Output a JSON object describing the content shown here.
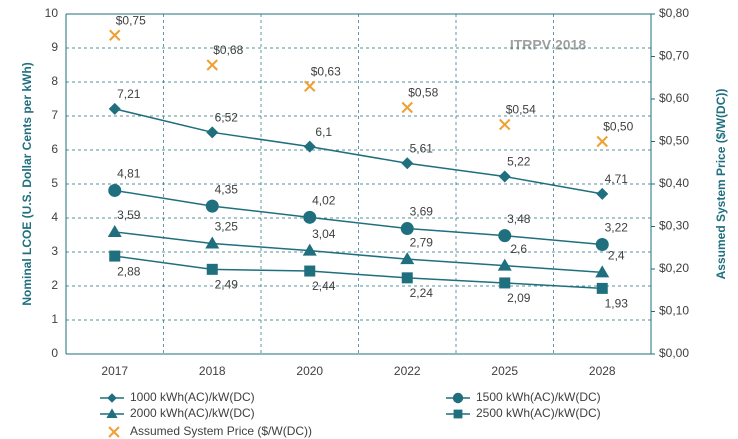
{
  "chart_data": {
    "type": "line",
    "annotation": "ITRPV 2018",
    "ylabel": "Nominal LCOE (U.S. Dollar Cents per kWh)",
    "y2label": "Assumed System Price ($/W(DC))",
    "categories": [
      "2017",
      "2018",
      "2020",
      "2022",
      "2025",
      "2028"
    ],
    "ylim": [
      0,
      10
    ],
    "yticks": [
      0,
      1,
      2,
      3,
      4,
      5,
      6,
      7,
      8,
      9,
      10
    ],
    "y2lim": [
      0,
      0.8
    ],
    "y2ticks": [
      {
        "value": 0,
        "label": "$0,00"
      },
      {
        "value": 0.1,
        "label": "$0,10"
      },
      {
        "value": 0.2,
        "label": "$0,20"
      },
      {
        "value": 0.3,
        "label": "$0,30"
      },
      {
        "value": 0.4,
        "label": "$0,40"
      },
      {
        "value": 0.5,
        "label": "$0,50"
      },
      {
        "value": 0.6,
        "label": "$0,60"
      },
      {
        "value": 0.7,
        "label": "$0,70"
      },
      {
        "value": 0.8,
        "label": "$0,80"
      }
    ],
    "grid": true,
    "legend": "bottom",
    "series": [
      {
        "name": "1000 kWh(AC)/kW(DC)",
        "color": "#1f6f7f",
        "marker": "diamond",
        "line": true,
        "values": [
          7.21,
          6.52,
          6.1,
          5.61,
          5.22,
          4.71
        ],
        "value_labels": [
          "7,21",
          "6,52",
          "6,1",
          "5,61",
          "5,22",
          "4,71"
        ]
      },
      {
        "name": "1500 kWh(AC)/kW(DC)",
        "color": "#1f6f7f",
        "marker": "circle",
        "line": true,
        "values": [
          4.81,
          4.35,
          4.02,
          3.69,
          3.48,
          3.22
        ],
        "value_labels": [
          "4,81",
          "4,35",
          "4,02",
          "3,69",
          "3,48",
          "3,22"
        ]
      },
      {
        "name": "2000 kWh(AC)/kW(DC)",
        "color": "#1f6f7f",
        "marker": "triangle",
        "line": true,
        "values": [
          3.59,
          3.25,
          3.04,
          2.79,
          2.6,
          2.4
        ],
        "value_labels": [
          "3,59",
          "3,25",
          "3,04",
          "2,79",
          "2,6",
          "2,4"
        ]
      },
      {
        "name": "2500 kWh(AC)/kW(DC)",
        "color": "#1f6f7f",
        "marker": "square",
        "line": true,
        "values": [
          2.88,
          2.49,
          2.44,
          2.24,
          2.09,
          1.93
        ],
        "value_labels": [
          "2,88",
          "2,49",
          "2,44",
          "2,24",
          "2,09",
          "1,93"
        ]
      },
      {
        "name": "Assumed System Price ($/W(DC))",
        "color": "#f0a030",
        "marker": "x",
        "line": false,
        "axis": "y2",
        "values": [
          0.75,
          0.68,
          0.63,
          0.58,
          0.54,
          0.5
        ],
        "value_labels": [
          "$0,75",
          "$0,68",
          "$0,63",
          "$0,58",
          "$0,54",
          "$0,50"
        ]
      }
    ]
  }
}
